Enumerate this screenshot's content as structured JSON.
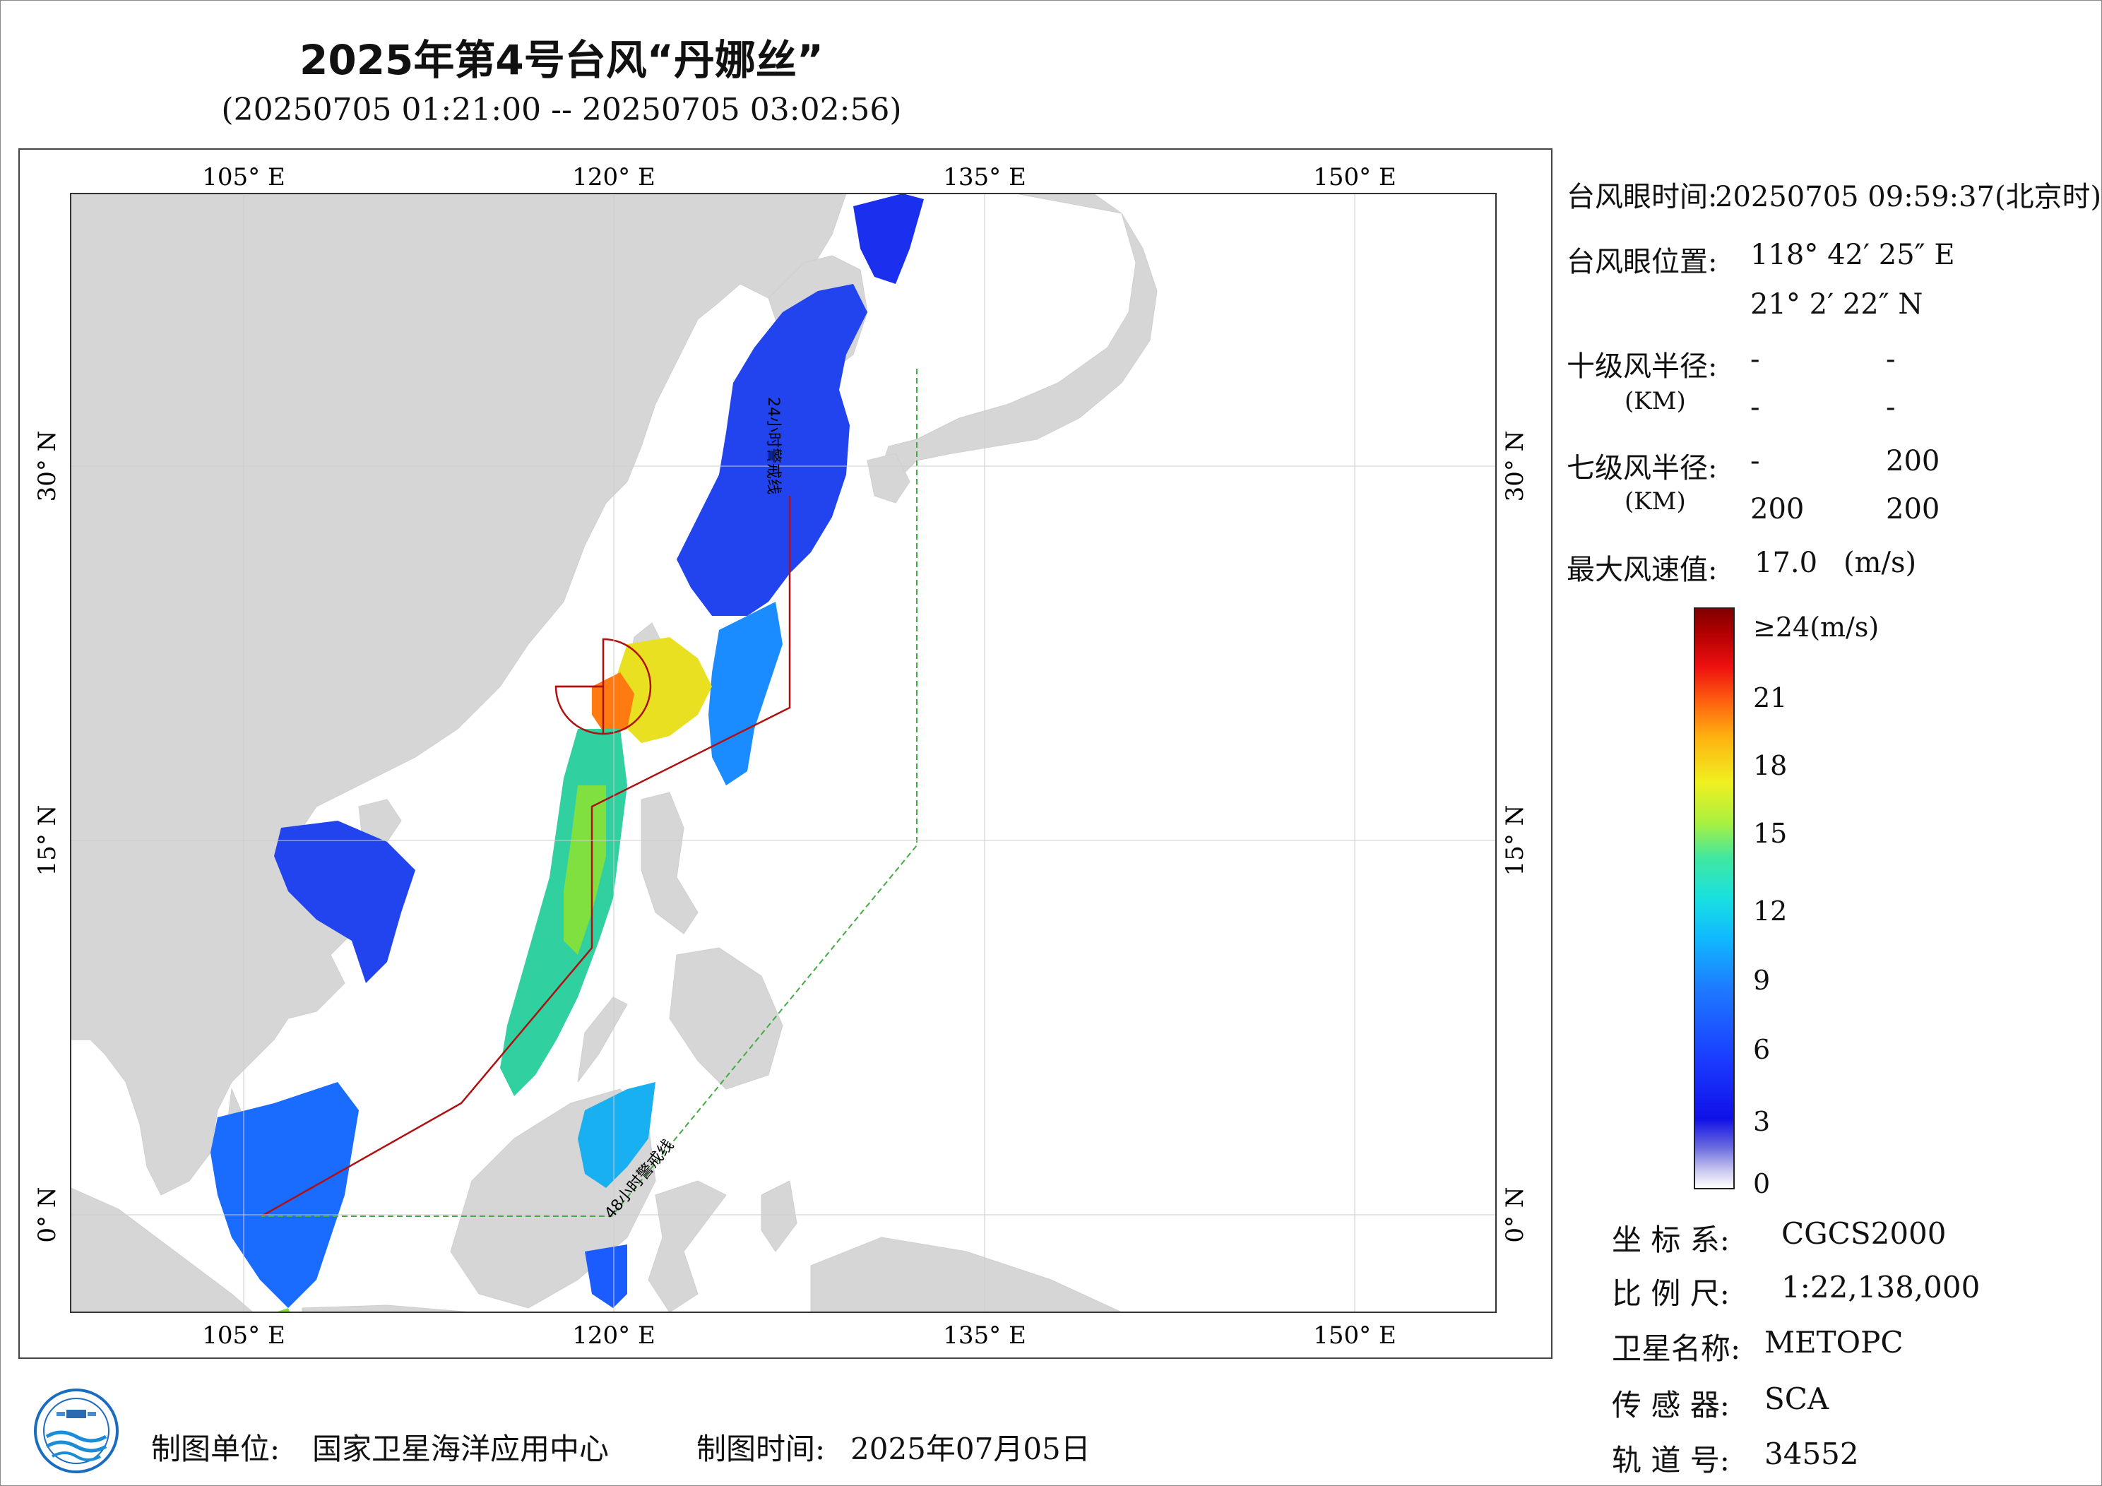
{
  "title": "2025年第4号台风“丹娜丝”",
  "subtitle": "(20250705 01:21:00 -- 20250705 03:02:56)",
  "map": {
    "lon_ticks": [
      "105° E",
      "120° E",
      "135° E",
      "150° E"
    ],
    "lat_ticks": [
      "30° N",
      "15° N",
      "0° N"
    ],
    "warning_24h_label": "24小时警戒线",
    "warning_48h_label": "48小时警戒线",
    "colors": {
      "land": "#d6d6d6",
      "sea": "#ffffff",
      "warning_24h": "#b01010",
      "warning_48h": "#44aa44"
    }
  },
  "info": {
    "eye_time_label": "台风眼时间:",
    "eye_time_value": "20250705 09:59:37(北京时)",
    "eye_pos_label": "台风眼位置:",
    "eye_lon": "118° 42′ 25″ E",
    "eye_lat": "21° 2′ 22″ N",
    "r10_label": "十级风半径:",
    "r10_unit": "(KM)",
    "r10_values": [
      "-",
      "-",
      "-",
      "-"
    ],
    "r7_label": "七级风半径:",
    "r7_unit": "(KM)",
    "r7_values": [
      "-",
      "200",
      "200",
      "200"
    ],
    "max_wind_label": "最大风速值:",
    "max_wind_value": "17.0",
    "max_wind_unit": "(m/s)"
  },
  "colorbar": {
    "ticks": [
      "≥24(m/s)",
      "21",
      "18",
      "15",
      "12",
      "9",
      "6",
      "3",
      "0"
    ],
    "max_value": 24,
    "min_value": 0
  },
  "meta": {
    "coord_label": "坐 标 系:",
    "coord_value": "CGCS2000",
    "scale_label": "比 例 尺:",
    "scale_value": "1:22,138,000",
    "satellite_label": "卫星名称:",
    "satellite_value": "METOPC",
    "sensor_label": "传 感 器:",
    "sensor_value": "SCA",
    "orbit_label": "轨 道 号:",
    "orbit_value": "34552"
  },
  "footer": {
    "producer_label": "制图单位:",
    "producer_value": "国家卫星海洋应用中心",
    "date_label": "制图时间:",
    "date_value": "2025年07月05日"
  }
}
